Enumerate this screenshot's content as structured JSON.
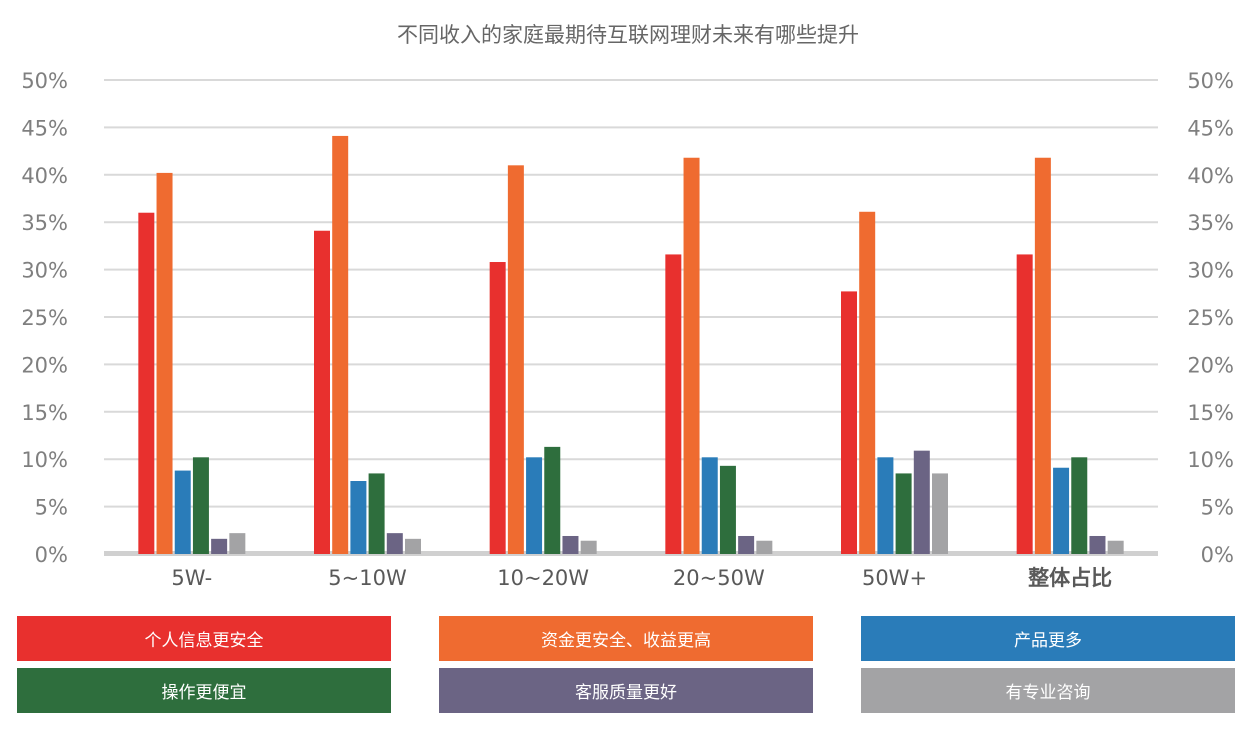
{
  "chart_data": {
    "type": "bar",
    "title": "不同收入的家庭最期待互联网理财未来有哪些提升",
    "categories": [
      "5W-",
      "5~10W",
      "10~20W",
      "20~50W",
      "50W+",
      "整体占比"
    ],
    "y_ticks": [
      "0%",
      "5%",
      "10%",
      "15%",
      "20%",
      "25%",
      "30%",
      "35%",
      "40%",
      "45%",
      "50%"
    ],
    "ylim": [
      0,
      50
    ],
    "grid": true,
    "legend_position": "bottom",
    "series": [
      {
        "name": "个人信息更安全",
        "color": "#e8302e",
        "values": [
          36.0,
          34.1,
          30.8,
          31.6,
          27.7,
          31.6
        ]
      },
      {
        "name": "资金更安全、收益更高",
        "color": "#ef6b30",
        "values": [
          40.2,
          44.1,
          41.0,
          41.8,
          36.1,
          41.8
        ]
      },
      {
        "name": "产品更多",
        "color": "#2a7cb9",
        "values": [
          8.8,
          7.7,
          10.2,
          10.2,
          10.2,
          9.1
        ]
      },
      {
        "name": "操作更便宜",
        "color": "#2e6e3d",
        "values": [
          10.2,
          8.5,
          11.3,
          9.3,
          8.5,
          10.2
        ]
      },
      {
        "name": "客服质量更好",
        "color": "#6b6484",
        "values": [
          1.6,
          2.2,
          1.9,
          1.9,
          10.9,
          1.9
        ]
      },
      {
        "name": "有专业咨询",
        "color": "#a3a3a5",
        "values": [
          2.2,
          1.6,
          1.4,
          1.4,
          8.5,
          1.4
        ]
      }
    ]
  }
}
